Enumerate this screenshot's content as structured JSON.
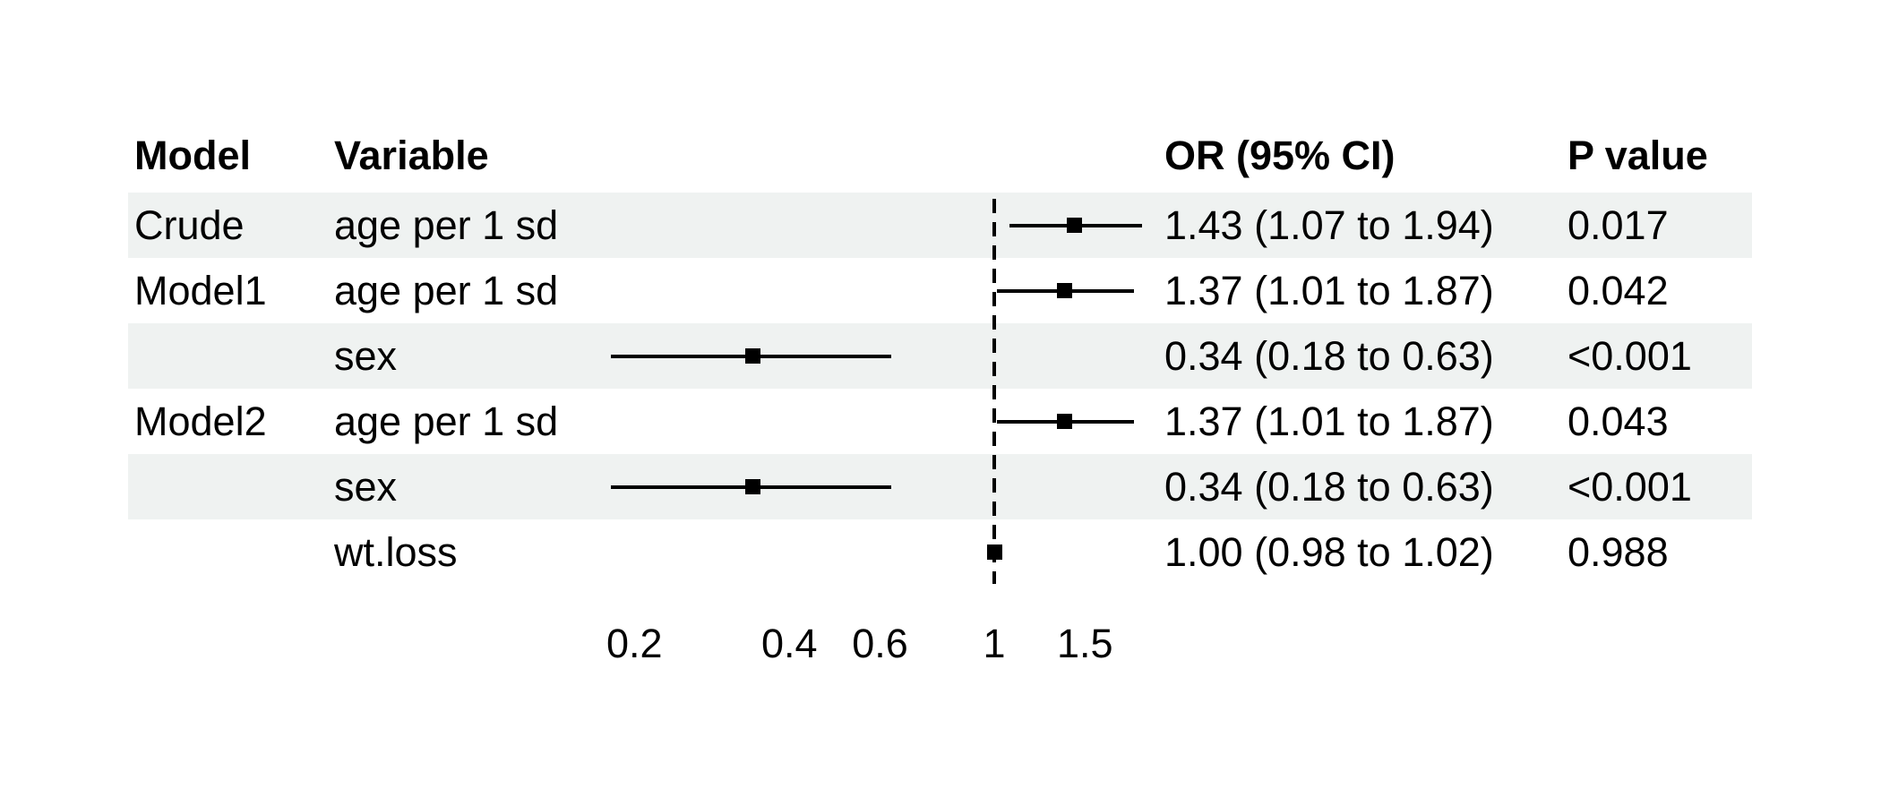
{
  "table": {
    "columns": [
      {
        "key": "model",
        "label": "Model"
      },
      {
        "key": "variable",
        "label": "Variable"
      },
      {
        "key": "or_ci",
        "label": "OR (95% CI)"
      },
      {
        "key": "p",
        "label": "P value"
      }
    ]
  },
  "chart_data": {
    "type": "forest",
    "x_scale": "log",
    "xlim": [
      0.18,
      1.96
    ],
    "tick_values": [
      0.2,
      0.4,
      0.6,
      1,
      1.5
    ],
    "tick_labels": [
      "0.2",
      "0.4",
      "0.6",
      "1",
      "1.5"
    ],
    "reference_line": 1,
    "grid": false,
    "rows": [
      {
        "model": "Crude",
        "variable": "age per 1 sd",
        "or": 1.43,
        "ci_low": 1.07,
        "ci_high": 1.94,
        "or_ci_text": "1.43 (1.07 to 1.94)",
        "p_text": "0.017",
        "shaded": true
      },
      {
        "model": "Model1",
        "variable": "age per 1 sd",
        "or": 1.37,
        "ci_low": 1.01,
        "ci_high": 1.87,
        "or_ci_text": "1.37 (1.01 to 1.87)",
        "p_text": "0.042",
        "shaded": false
      },
      {
        "model": "",
        "variable": "sex",
        "or": 0.34,
        "ci_low": 0.18,
        "ci_high": 0.63,
        "or_ci_text": "0.34 (0.18 to 0.63)",
        "p_text": "<0.001",
        "shaded": true
      },
      {
        "model": "Model2",
        "variable": "age per 1 sd",
        "or": 1.37,
        "ci_low": 1.01,
        "ci_high": 1.87,
        "or_ci_text": "1.37 (1.01 to 1.87)",
        "p_text": "0.043",
        "shaded": false
      },
      {
        "model": "",
        "variable": "sex",
        "or": 0.34,
        "ci_low": 0.18,
        "ci_high": 0.63,
        "or_ci_text": "0.34 (0.18 to 0.63)",
        "p_text": "<0.001",
        "shaded": true
      },
      {
        "model": "",
        "variable": "wt.loss",
        "or": 1.0,
        "ci_low": 0.98,
        "ci_high": 1.02,
        "or_ci_text": "1.00 (0.98 to 1.02)",
        "p_text": "0.988",
        "shaded": false
      }
    ]
  },
  "colors": {
    "row_shading": "#eff2f1",
    "text": "#000000",
    "marker": "#000000",
    "line": "#000000",
    "background": "#ffffff"
  }
}
